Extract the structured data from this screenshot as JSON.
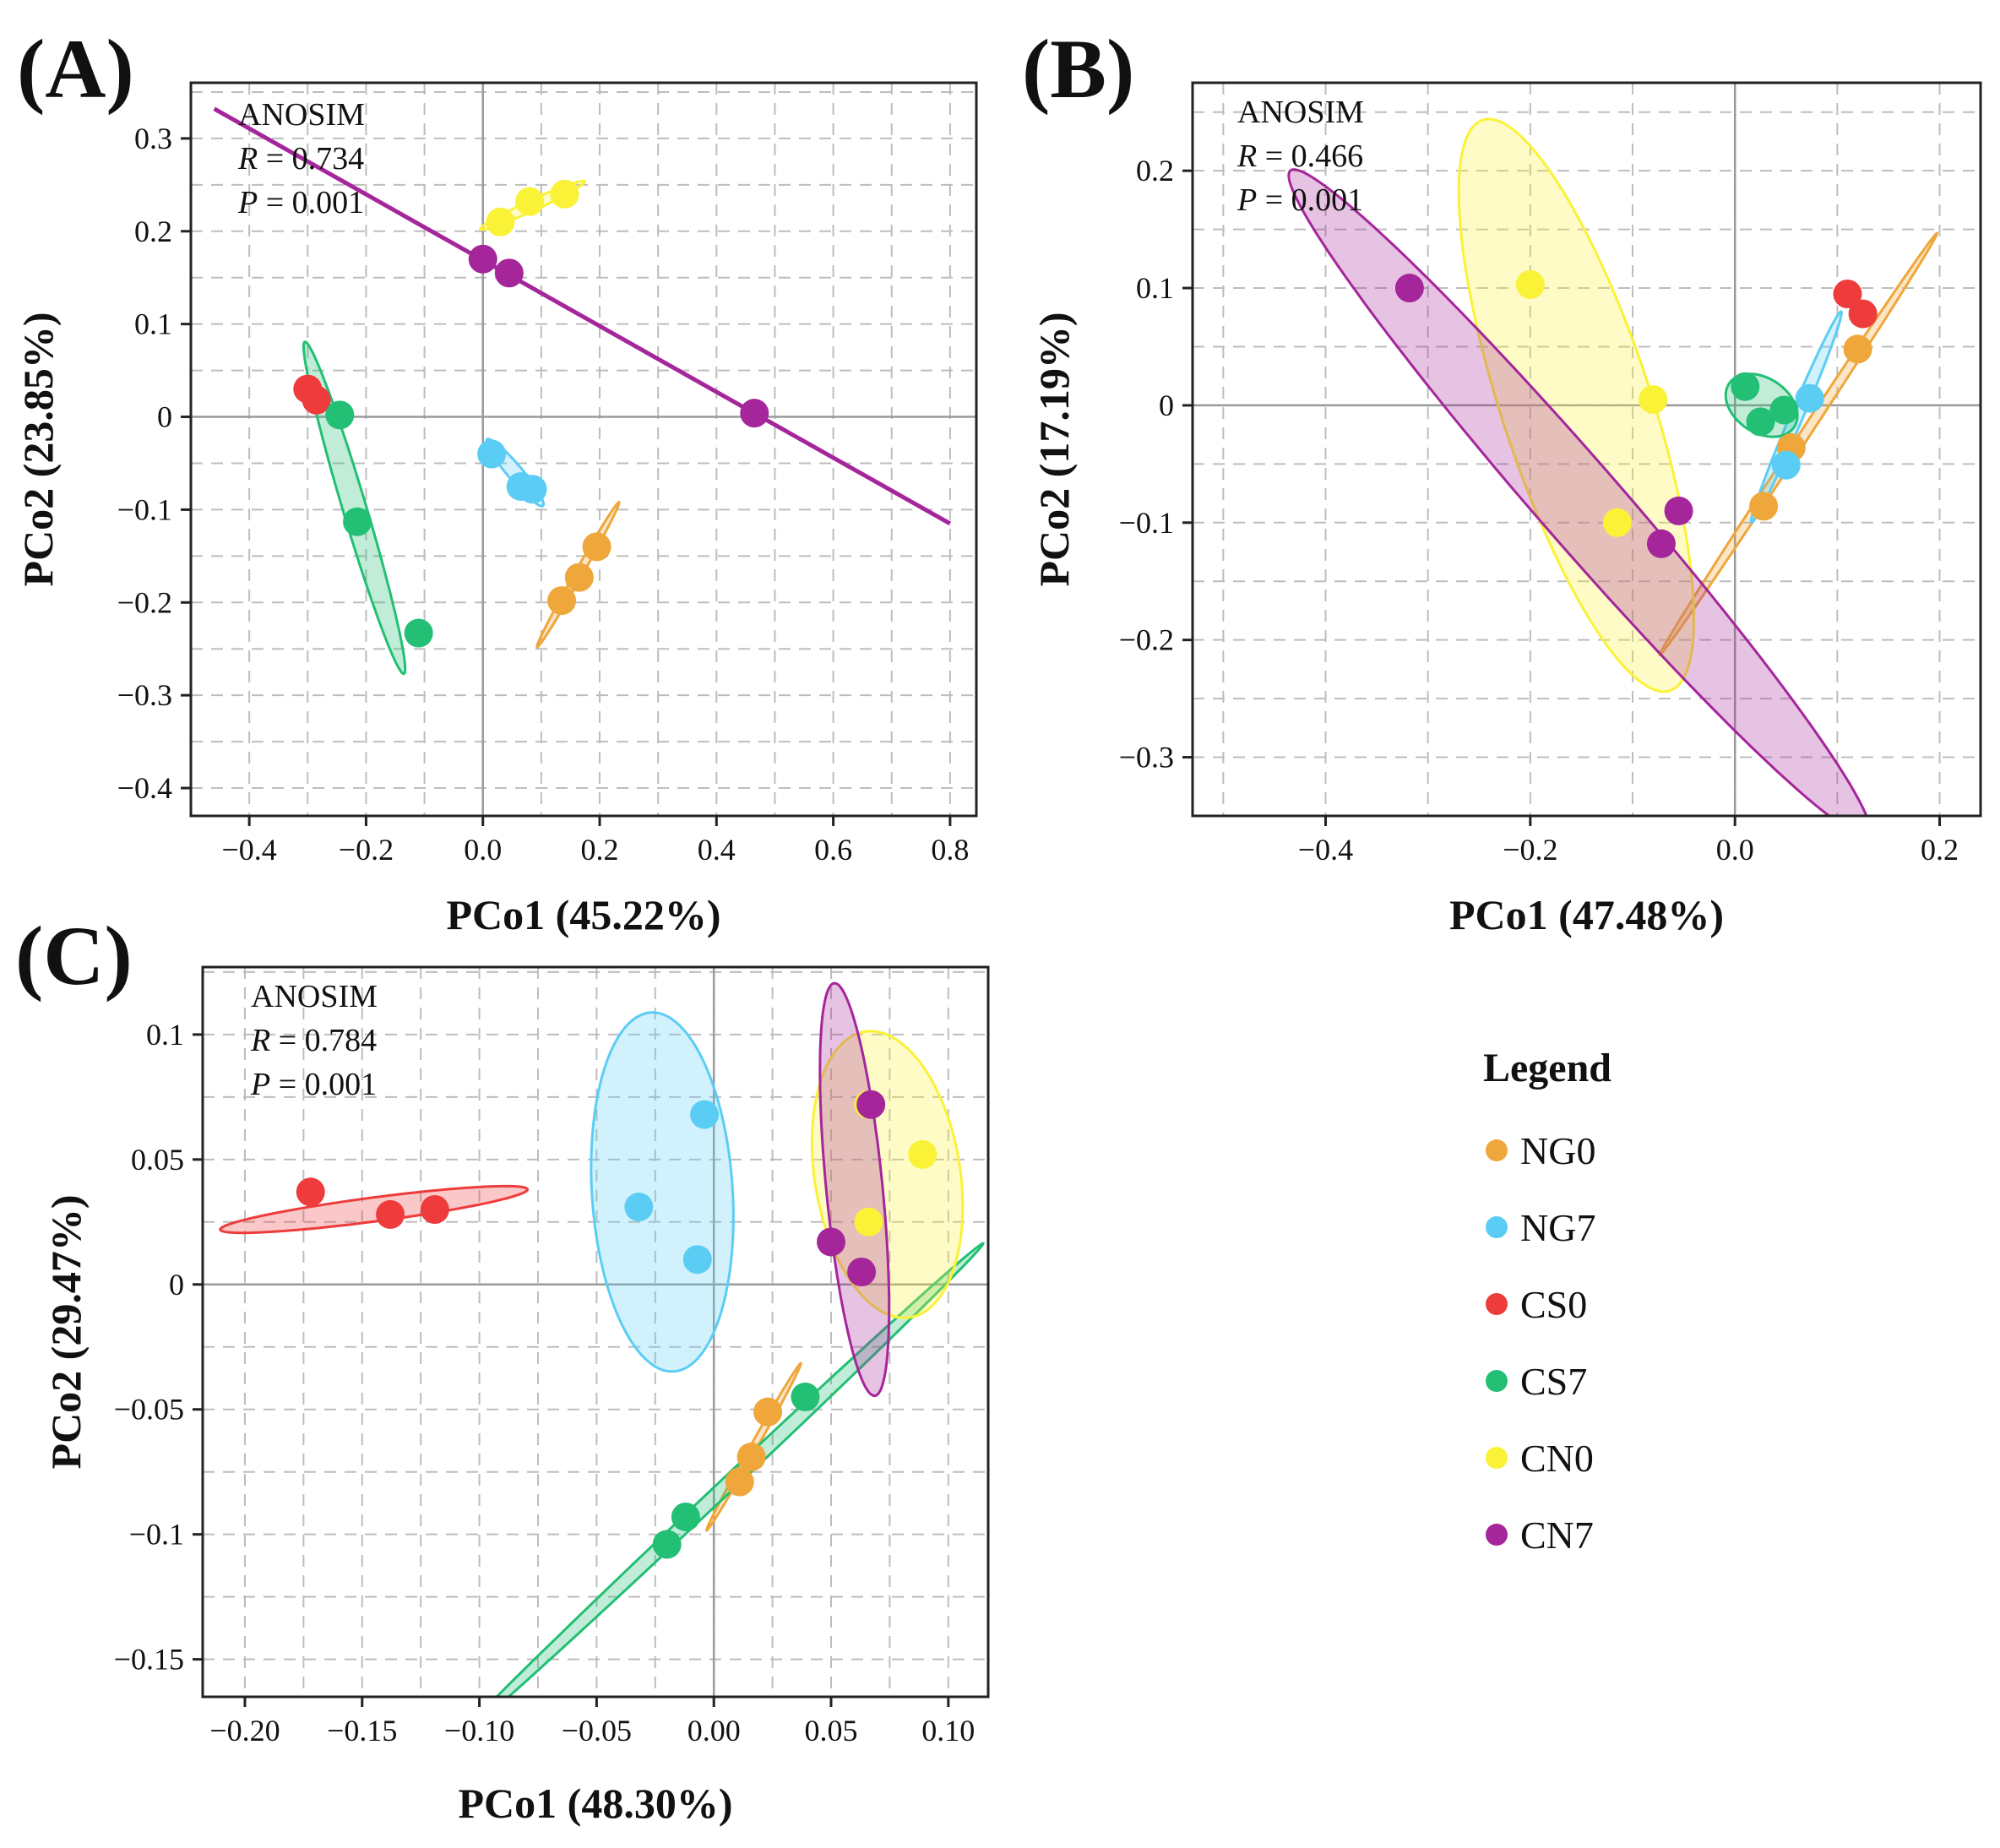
{
  "legend": {
    "title": "Legend",
    "items": [
      {
        "label": "NG0",
        "color": "#EFA63A"
      },
      {
        "label": "NG7",
        "color": "#5BCDF5"
      },
      {
        "label": "CS0",
        "color": "#EE3B3B"
      },
      {
        "label": "CS7",
        "color": "#22BF74"
      },
      {
        "label": "CN0",
        "color": "#FAF236"
      },
      {
        "label": "CN7",
        "color": "#A5259A"
      }
    ]
  },
  "chart_data": [
    {
      "type": "scatter",
      "panel_label": "(A)",
      "xlabel": "PCo1 (45.22%)",
      "ylabel": "PCo2 (23.85%)",
      "xlim": [
        -0.5,
        0.845
      ],
      "ylim": [
        -0.43,
        0.36
      ],
      "x_ticks": [
        -0.4,
        -0.2,
        0.0,
        0.2,
        0.4,
        0.6,
        0.8
      ],
      "x_tick_labels": [
        "−0.4",
        "−0.2",
        "0.0",
        "0.2",
        "0.4",
        "0.6",
        "0.8"
      ],
      "y_ticks": [
        -0.4,
        -0.3,
        -0.2,
        -0.1,
        0,
        0.1,
        0.2,
        0.3
      ],
      "y_tick_labels": [
        "−0.4",
        "−0.3",
        "−0.2",
        "−0.1",
        "0",
        "0.1",
        "0.2",
        "0.3"
      ],
      "annotation": {
        "title": "ANOSIM",
        "r_label": "R",
        "r_value": " = 0.734",
        "p_label": "P",
        "p_value": " = 0.001"
      },
      "series": [
        {
          "name": "NG0",
          "x": [
            0.195,
            0.165,
            0.135
          ],
          "y": [
            -0.14,
            -0.173,
            -0.198
          ],
          "ellipse": {
            "cx": 0.163,
            "cy": -0.17,
            "rx": 0.105,
            "ry": 0.0055,
            "angle": 48
          }
        },
        {
          "name": "NG7",
          "x": [
            0.015,
            0.065,
            0.085
          ],
          "y": [
            -0.04,
            -0.075,
            -0.078
          ],
          "ellipse": {
            "cx": 0.055,
            "cy": -0.06,
            "rx": 0.06,
            "ry": 0.01,
            "angle": -36
          }
        },
        {
          "name": "CS0",
          "x": [
            -0.3,
            -0.285
          ],
          "y": [
            0.03,
            0.018
          ]
        },
        {
          "name": "CS7",
          "x": [
            -0.245,
            -0.215,
            -0.11
          ],
          "y": [
            0.002,
            -0.113,
            -0.233
          ],
          "ellipse": {
            "cx": -0.22,
            "cy": -0.098,
            "rx": 0.198,
            "ry": 0.019,
            "angle": -64.5
          }
        },
        {
          "name": "CN0",
          "x": [
            0.03,
            0.08,
            0.14
          ],
          "y": [
            0.21,
            0.232,
            0.24
          ],
          "ellipse": {
            "cx": 0.085,
            "cy": 0.228,
            "rx": 0.093,
            "ry": 0.006,
            "angle": 16
          }
        },
        {
          "name": "CN7",
          "x": [
            0.0,
            0.045,
            0.465
          ],
          "y": [
            0.17,
            0.155,
            0.004
          ],
          "line": {
            "x": [
              -0.46,
              0.8
            ],
            "y": [
              0.332,
              -0.115
            ]
          }
        }
      ]
    },
    {
      "type": "scatter",
      "panel_label": "(B)",
      "xlabel": "PCo1 (47.48%)",
      "ylabel": "PCo2 (17.19%)",
      "xlim": [
        -0.53,
        0.24
      ],
      "ylim": [
        -0.35,
        0.275
      ],
      "x_ticks": [
        -0.4,
        -0.2,
        0.0,
        0.2
      ],
      "x_tick_labels": [
        "−0.4",
        "−0.2",
        "0.0",
        "0.2"
      ],
      "y_ticks": [
        -0.3,
        -0.2,
        -0.1,
        0,
        0.1,
        0.2
      ],
      "y_tick_labels": [
        "−0.3",
        "−0.2",
        "−0.1",
        "0",
        "0.1",
        "0.2"
      ],
      "annotation": {
        "title": "ANOSIM",
        "r_label": "R",
        "r_value": " = 0.466",
        "p_label": "P",
        "p_value": " = 0.001"
      },
      "series": [
        {
          "name": "NG0",
          "x": [
            0.12,
            0.055,
            0.028
          ],
          "y": [
            0.048,
            -0.036,
            -0.086
          ],
          "ellipse": {
            "cx": 0.062,
            "cy": -0.033,
            "rx": 0.225,
            "ry": 0.0045,
            "angle": 53
          }
        },
        {
          "name": "NG7",
          "x": [
            0.073,
            0.05
          ],
          "y": [
            0.006,
            -0.051
          ],
          "ellipse": {
            "cx": 0.06,
            "cy": -0.01,
            "rx": 0.1,
            "ry": 0.006,
            "angle": 64
          }
        },
        {
          "name": "CS0",
          "x": [
            0.11,
            0.125
          ],
          "y": [
            0.095,
            0.078
          ]
        },
        {
          "name": "CS7",
          "x": [
            0.01,
            0.025,
            0.048
          ],
          "y": [
            0.016,
            -0.014,
            -0.004
          ],
          "ellipse": {
            "cx": 0.026,
            "cy": 0.0,
            "rx": 0.037,
            "ry": 0.024,
            "angle": -25
          }
        },
        {
          "name": "CN0",
          "x": [
            -0.2,
            -0.08,
            -0.115
          ],
          "y": [
            0.103,
            0.005,
            -0.1
          ],
          "ellipse": {
            "cx": -0.155,
            "cy": 0.0,
            "rx": 0.26,
            "ry": 0.072,
            "angle": -69
          }
        },
        {
          "name": "CN7",
          "x": [
            -0.318,
            -0.055,
            -0.072
          ],
          "y": [
            0.1,
            -0.09,
            -0.118
          ],
          "ellipse": {
            "cx": -0.152,
            "cy": -0.083,
            "rx": 0.4,
            "ry": 0.038,
            "angle": -45
          }
        }
      ]
    },
    {
      "type": "scatter",
      "panel_label": "(C)",
      "xlabel": "PCo1 (48.30%)",
      "ylabel": "PCo2 (29.47%)",
      "xlim": [
        -0.218,
        0.117
      ],
      "ylim": [
        -0.165,
        0.127
      ],
      "x_ticks": [
        -0.2,
        -0.15,
        -0.1,
        -0.05,
        0.0,
        0.05,
        0.1
      ],
      "x_tick_labels": [
        "−0.20",
        "−0.15",
        "−0.10",
        "−0.05",
        "0.00",
        "0.05",
        "0.10"
      ],
      "y_ticks": [
        -0.15,
        -0.1,
        -0.05,
        0,
        0.05,
        0.1
      ],
      "y_tick_labels": [
        "−0.15",
        "−0.1",
        "−0.05",
        "0",
        "0.05",
        "0.1"
      ],
      "annotation": {
        "title": "ANOSIM",
        "r_label": "R",
        "r_value": " = 0.784",
        "p_label": "P",
        "p_value": " = 0.001"
      },
      "series": [
        {
          "name": "NG0",
          "x": [
            0.023,
            0.016,
            0.011
          ],
          "y": [
            -0.051,
            -0.069,
            -0.079
          ],
          "ellipse": {
            "cx": 0.017,
            "cy": -0.065,
            "rx": 0.039,
            "ry": 0.0014,
            "angle": 59
          }
        },
        {
          "name": "NG7",
          "x": [
            -0.004,
            -0.032,
            -0.007
          ],
          "y": [
            0.068,
            0.031,
            0.01
          ],
          "ellipse": {
            "cx": -0.022,
            "cy": 0.037,
            "rx": 0.072,
            "ry": 0.03,
            "angle": -86
          }
        },
        {
          "name": "CS0",
          "x": [
            -0.172,
            -0.138,
            -0.119
          ],
          "y": [
            0.037,
            0.028,
            0.03
          ],
          "ellipse": {
            "cx": -0.145,
            "cy": 0.03,
            "rx": 0.066,
            "ry": 0.0048,
            "angle": 7
          }
        },
        {
          "name": "CS7",
          "x": [
            0.039,
            -0.012,
            -0.02
          ],
          "y": [
            -0.045,
            -0.093,
            -0.104
          ],
          "ellipse": {
            "cx": 0.0025,
            "cy": -0.083,
            "rx": 0.15,
            "ry": 0.003,
            "angle": 41.5
          }
        },
        {
          "name": "CN0",
          "x": [
            0.089,
            0.066,
            0.066
          ],
          "y": [
            0.052,
            0.025,
            0.072
          ],
          "ellipse": {
            "cx": 0.074,
            "cy": 0.044,
            "rx": 0.058,
            "ry": 0.031,
            "angle": -80
          }
        },
        {
          "name": "CN7",
          "x": [
            0.067,
            0.05,
            0.063
          ],
          "y": [
            0.072,
            0.017,
            0.005
          ],
          "ellipse": {
            "cx": 0.06,
            "cy": 0.038,
            "rx": 0.083,
            "ry": 0.012,
            "angle": -84
          }
        }
      ]
    }
  ]
}
